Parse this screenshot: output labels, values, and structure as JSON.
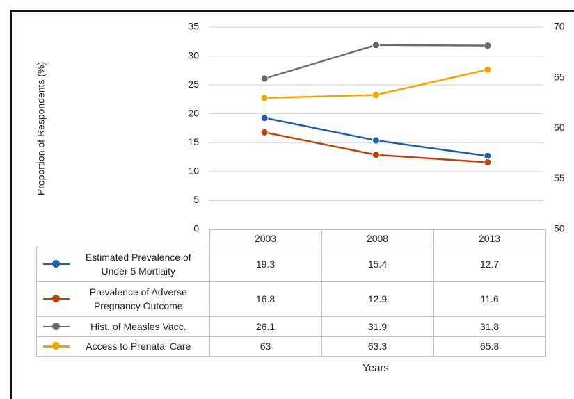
{
  "chart_data": {
    "type": "line",
    "y_label": "Proportion of Respondents (%)",
    "x_label": "Years",
    "categories": [
      "2003",
      "2008",
      "2013"
    ],
    "ylim": [
      0,
      35
    ],
    "yticks": [
      0,
      5,
      10,
      15,
      20,
      25,
      30,
      35
    ],
    "y2lim": [
      50,
      70
    ],
    "y2ticks": [
      50,
      55,
      60,
      65,
      70
    ],
    "grid": true,
    "series": [
      {
        "name": "Estimated Prevalence of Under 5 Mortlaity",
        "color": "#1f5fa8",
        "values": [
          19.3,
          15.4,
          12.7
        ]
      },
      {
        "name": "Prevalence of Adverse Pregnancy Outcome",
        "color": "#c0420b",
        "values": [
          16.8,
          12.9,
          11.6
        ]
      },
      {
        "name": "Hist. of Measles Vacc.",
        "color": "#6b6b6b",
        "values": [
          26.1,
          31.9,
          31.8
        ]
      },
      {
        "name": "Access to Prenatal Care",
        "color": "#f2a400",
        "values": [
          63,
          63.3,
          65.8
        ],
        "axis": "y2"
      }
    ]
  }
}
